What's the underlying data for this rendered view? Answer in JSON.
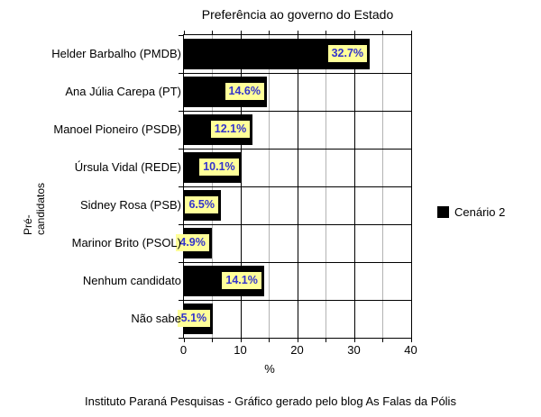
{
  "title": "Preferência ao governo do Estado",
  "footer": "Instituto Paraná Pesquisas - Gráfico gerado pelo blog As Falas da Pólis",
  "legend": {
    "label": "Cenário 2",
    "swatch_color": "#000000"
  },
  "chart_data": {
    "type": "bar",
    "orientation": "horizontal",
    "title": "Preferência ao governo do Estado",
    "xlabel": "%",
    "ylabel": "Pré-\ncandidatos",
    "categories": [
      "Helder Barbalho (PMDB)",
      "Ana Júlia Carepa (PT)",
      "Manoel Pioneiro (PSDB)",
      "Úrsula Vidal (REDE)",
      "Sidney Rosa (PSB)",
      "Marinor Brito (PSOL)",
      "Nenhum candidato",
      "Não sabe"
    ],
    "series": [
      {
        "name": "Cenário 2",
        "values": [
          32.7,
          14.6,
          12.1,
          10.1,
          6.5,
          4.9,
          14.1,
          5.1
        ]
      }
    ],
    "data_labels": [
      "32.7%",
      "14.6%",
      "12.1%",
      "10.1%",
      "6.5%",
      "4.9%",
      "14.1%",
      "5.1%"
    ],
    "xlim": [
      0,
      40
    ],
    "x_major_ticks": [
      0,
      10,
      20,
      30,
      40
    ],
    "x_minor_ticks": [
      5,
      15,
      25,
      35
    ],
    "x_tick_labels": [
      "0",
      "10",
      "20",
      "30",
      "40"
    ],
    "grid": true,
    "legend_position": "right",
    "colors": {
      "bar": "#000000",
      "data_label_bg": "#ffff99",
      "data_label_text": "#3333cc",
      "major_gridline": "#000000",
      "minor_gridline": "#b3b3b3",
      "frame": "#000000",
      "background": "#ffffff"
    }
  }
}
